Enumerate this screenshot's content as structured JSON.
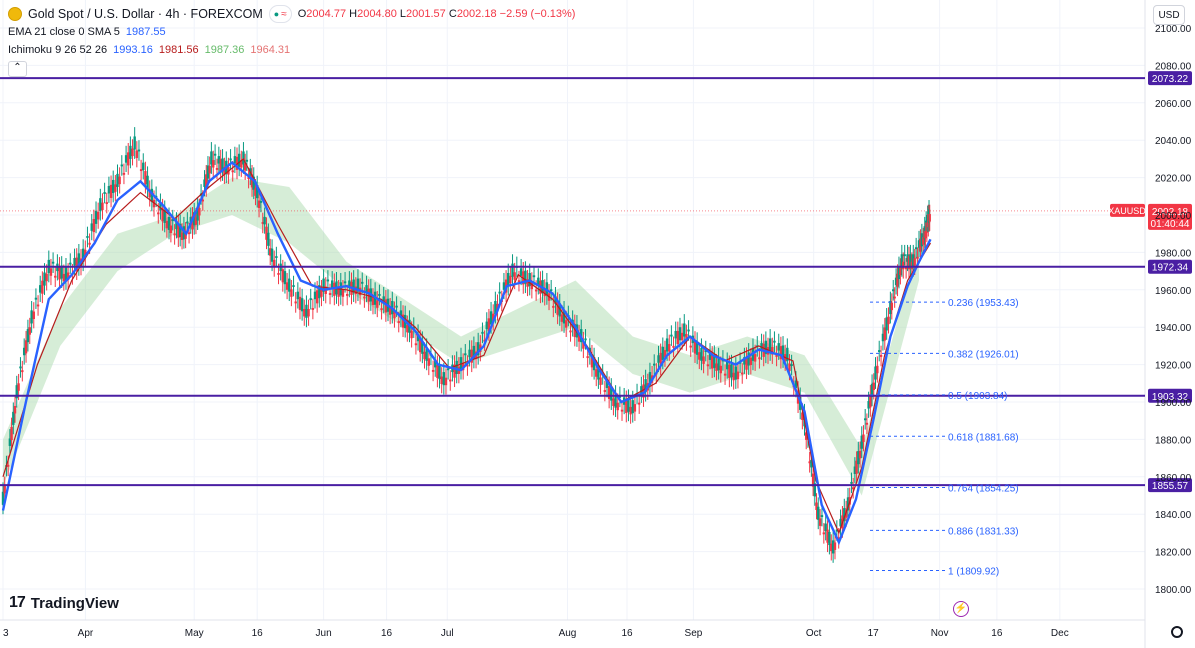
{
  "header": {
    "symbol_title": "Gold Spot / U.S. Dollar · 4h · FOREXCOM",
    "open_label": "O",
    "open": "2004.77",
    "high_label": "H",
    "high": "2004.80",
    "low_label": "L",
    "low": "2001.57",
    "close_label": "C",
    "close": "2002.18",
    "change": "−2.59 (−0.13%)",
    "currency_button": "USD"
  },
  "indicators": {
    "ema_label": "EMA 21 close 0 SMA 5",
    "ema_value": "1987.55",
    "ichimoku_label": "Ichimoku 9 26 52 26",
    "ichimoku_values": [
      "1993.16",
      "1981.56",
      "1987.36",
      "1964.31"
    ]
  },
  "colors": {
    "price_up": "#089981",
    "price_down": "#f23645",
    "ema": "#2962ff",
    "tenkan": "#2962ff",
    "kijun": "#b71c1c",
    "chikou": "#43a047",
    "cloud_bull": "#a5d6a7",
    "cloud_bear": "#f8bbd0",
    "hline": "#4a1fa3",
    "fib": "#2962ff",
    "tag_bg": "#4a1fa3",
    "price_tag_bg": "#f23645"
  },
  "chart_data": {
    "type": "line",
    "title": "Gold Spot / U.S. Dollar · 4h · FOREXCOM",
    "ylim": [
      1795,
      2105
    ],
    "y_ticks": [
      1800,
      1820,
      1840,
      1860,
      1880,
      1900,
      1920,
      1940,
      1960,
      1980,
      2000,
      2020,
      2040,
      2060,
      2080,
      2100
    ],
    "y_tick_labels": [
      "1800.00",
      "1820.00",
      "1840.00",
      "1860.00",
      "1880.00",
      "1900.00",
      "1920.00",
      "1940.00",
      "1960.00",
      "1980.00",
      "2000.00",
      "2020.00",
      "2040.00",
      "2060.00",
      "2080.00",
      "2100.00"
    ],
    "x_ticks": [
      "3",
      "Apr",
      "May",
      "16",
      "Jun",
      "16",
      "Jul",
      "Aug",
      "16",
      "Sep",
      "Oct",
      "17",
      "Nov",
      "16",
      "Dec"
    ],
    "x_tick_pos": [
      0.0,
      0.072,
      0.167,
      0.222,
      0.28,
      0.335,
      0.388,
      0.493,
      0.545,
      0.603,
      0.708,
      0.76,
      0.818,
      0.868,
      0.923
    ],
    "price_series": [
      {
        "d": 0.0,
        "v": 1848
      },
      {
        "d": 0.012,
        "v": 1905
      },
      {
        "d": 0.025,
        "v": 1945
      },
      {
        "d": 0.04,
        "v": 1972
      },
      {
        "d": 0.055,
        "v": 1968
      },
      {
        "d": 0.07,
        "v": 1978
      },
      {
        "d": 0.085,
        "v": 2005
      },
      {
        "d": 0.1,
        "v": 2018
      },
      {
        "d": 0.115,
        "v": 2038
      },
      {
        "d": 0.13,
        "v": 2010
      },
      {
        "d": 0.145,
        "v": 1995
      },
      {
        "d": 0.158,
        "v": 1990
      },
      {
        "d": 0.17,
        "v": 2000
      },
      {
        "d": 0.182,
        "v": 2030
      },
      {
        "d": 0.195,
        "v": 2025
      },
      {
        "d": 0.21,
        "v": 2030
      },
      {
        "d": 0.222,
        "v": 2012
      },
      {
        "d": 0.235,
        "v": 1978
      },
      {
        "d": 0.25,
        "v": 1962
      },
      {
        "d": 0.265,
        "v": 1948
      },
      {
        "d": 0.28,
        "v": 1962
      },
      {
        "d": 0.295,
        "v": 1960
      },
      {
        "d": 0.31,
        "v": 1962
      },
      {
        "d": 0.325,
        "v": 1955
      },
      {
        "d": 0.34,
        "v": 1950
      },
      {
        "d": 0.355,
        "v": 1940
      },
      {
        "d": 0.37,
        "v": 1925
      },
      {
        "d": 0.385,
        "v": 1912
      },
      {
        "d": 0.4,
        "v": 1920
      },
      {
        "d": 0.415,
        "v": 1928
      },
      {
        "d": 0.43,
        "v": 1950
      },
      {
        "d": 0.445,
        "v": 1970
      },
      {
        "d": 0.46,
        "v": 1965
      },
      {
        "d": 0.475,
        "v": 1960
      },
      {
        "d": 0.49,
        "v": 1945
      },
      {
        "d": 0.505,
        "v": 1935
      },
      {
        "d": 0.52,
        "v": 1915
      },
      {
        "d": 0.535,
        "v": 1900
      },
      {
        "d": 0.55,
        "v": 1897
      },
      {
        "d": 0.565,
        "v": 1912
      },
      {
        "d": 0.58,
        "v": 1930
      },
      {
        "d": 0.595,
        "v": 1938
      },
      {
        "d": 0.61,
        "v": 1925
      },
      {
        "d": 0.625,
        "v": 1920
      },
      {
        "d": 0.64,
        "v": 1915
      },
      {
        "d": 0.655,
        "v": 1925
      },
      {
        "d": 0.67,
        "v": 1930
      },
      {
        "d": 0.685,
        "v": 1925
      },
      {
        "d": 0.7,
        "v": 1890
      },
      {
        "d": 0.712,
        "v": 1840
      },
      {
        "d": 0.725,
        "v": 1822
      },
      {
        "d": 0.738,
        "v": 1845
      },
      {
        "d": 0.75,
        "v": 1878
      },
      {
        "d": 0.762,
        "v": 1915
      },
      {
        "d": 0.775,
        "v": 1950
      },
      {
        "d": 0.785,
        "v": 1975
      },
      {
        "d": 0.795,
        "v": 1975
      },
      {
        "d": 0.805,
        "v": 1990
      },
      {
        "d": 0.81,
        "v": 2002
      }
    ],
    "ema_series": [
      {
        "d": 0.0,
        "v": 1842
      },
      {
        "d": 0.02,
        "v": 1900
      },
      {
        "d": 0.04,
        "v": 1955
      },
      {
        "d": 0.06,
        "v": 1968
      },
      {
        "d": 0.08,
        "v": 1985
      },
      {
        "d": 0.1,
        "v": 2008
      },
      {
        "d": 0.12,
        "v": 2018
      },
      {
        "d": 0.14,
        "v": 2005
      },
      {
        "d": 0.16,
        "v": 1990
      },
      {
        "d": 0.18,
        "v": 2018
      },
      {
        "d": 0.2,
        "v": 2028
      },
      {
        "d": 0.22,
        "v": 2018
      },
      {
        "d": 0.24,
        "v": 1990
      },
      {
        "d": 0.26,
        "v": 1965
      },
      {
        "d": 0.28,
        "v": 1960
      },
      {
        "d": 0.3,
        "v": 1962
      },
      {
        "d": 0.32,
        "v": 1958
      },
      {
        "d": 0.34,
        "v": 1950
      },
      {
        "d": 0.36,
        "v": 1938
      },
      {
        "d": 0.38,
        "v": 1920
      },
      {
        "d": 0.4,
        "v": 1917
      },
      {
        "d": 0.42,
        "v": 1930
      },
      {
        "d": 0.44,
        "v": 1962
      },
      {
        "d": 0.46,
        "v": 1965
      },
      {
        "d": 0.48,
        "v": 1958
      },
      {
        "d": 0.5,
        "v": 1940
      },
      {
        "d": 0.52,
        "v": 1918
      },
      {
        "d": 0.54,
        "v": 1900
      },
      {
        "d": 0.56,
        "v": 1905
      },
      {
        "d": 0.58,
        "v": 1925
      },
      {
        "d": 0.6,
        "v": 1935
      },
      {
        "d": 0.62,
        "v": 1925
      },
      {
        "d": 0.64,
        "v": 1920
      },
      {
        "d": 0.66,
        "v": 1928
      },
      {
        "d": 0.68,
        "v": 1925
      },
      {
        "d": 0.7,
        "v": 1895
      },
      {
        "d": 0.715,
        "v": 1845
      },
      {
        "d": 0.73,
        "v": 1825
      },
      {
        "d": 0.745,
        "v": 1848
      },
      {
        "d": 0.76,
        "v": 1890
      },
      {
        "d": 0.775,
        "v": 1935
      },
      {
        "d": 0.79,
        "v": 1962
      },
      {
        "d": 0.8,
        "v": 1975
      },
      {
        "d": 0.81,
        "v": 1987
      }
    ],
    "kijun_series": [
      {
        "d": 0.0,
        "v": 1860
      },
      {
        "d": 0.03,
        "v": 1920
      },
      {
        "d": 0.06,
        "v": 1965
      },
      {
        "d": 0.09,
        "v": 1995
      },
      {
        "d": 0.12,
        "v": 2012
      },
      {
        "d": 0.15,
        "v": 1998
      },
      {
        "d": 0.18,
        "v": 2015
      },
      {
        "d": 0.21,
        "v": 2030
      },
      {
        "d": 0.24,
        "v": 1995
      },
      {
        "d": 0.27,
        "v": 1962
      },
      {
        "d": 0.3,
        "v": 1960
      },
      {
        "d": 0.33,
        "v": 1955
      },
      {
        "d": 0.36,
        "v": 1940
      },
      {
        "d": 0.39,
        "v": 1918
      },
      {
        "d": 0.42,
        "v": 1925
      },
      {
        "d": 0.45,
        "v": 1968
      },
      {
        "d": 0.48,
        "v": 1955
      },
      {
        "d": 0.51,
        "v": 1930
      },
      {
        "d": 0.54,
        "v": 1900
      },
      {
        "d": 0.57,
        "v": 1910
      },
      {
        "d": 0.6,
        "v": 1935
      },
      {
        "d": 0.63,
        "v": 1922
      },
      {
        "d": 0.66,
        "v": 1930
      },
      {
        "d": 0.69,
        "v": 1922
      },
      {
        "d": 0.71,
        "v": 1858
      },
      {
        "d": 0.73,
        "v": 1830
      },
      {
        "d": 0.75,
        "v": 1865
      },
      {
        "d": 0.77,
        "v": 1925
      },
      {
        "d": 0.79,
        "v": 1965
      },
      {
        "d": 0.81,
        "v": 1985
      }
    ],
    "cloud_upper": [
      {
        "d": 0.0,
        "v": 1880
      },
      {
        "d": 0.05,
        "v": 1950
      },
      {
        "d": 0.1,
        "v": 1990
      },
      {
        "d": 0.15,
        "v": 2000
      },
      {
        "d": 0.2,
        "v": 2020
      },
      {
        "d": 0.25,
        "v": 2015
      },
      {
        "d": 0.3,
        "v": 1975
      },
      {
        "d": 0.35,
        "v": 1955
      },
      {
        "d": 0.4,
        "v": 1935
      },
      {
        "d": 0.45,
        "v": 1950
      },
      {
        "d": 0.5,
        "v": 1965
      },
      {
        "d": 0.55,
        "v": 1935
      },
      {
        "d": 0.6,
        "v": 1925
      },
      {
        "d": 0.65,
        "v": 1935
      },
      {
        "d": 0.7,
        "v": 1925
      },
      {
        "d": 0.75,
        "v": 1875
      },
      {
        "d": 0.8,
        "v": 1985
      }
    ],
    "cloud_lower": [
      {
        "d": 0.0,
        "v": 1855
      },
      {
        "d": 0.05,
        "v": 1930
      },
      {
        "d": 0.1,
        "v": 1970
      },
      {
        "d": 0.15,
        "v": 1990
      },
      {
        "d": 0.2,
        "v": 2000
      },
      {
        "d": 0.25,
        "v": 1985
      },
      {
        "d": 0.3,
        "v": 1960
      },
      {
        "d": 0.35,
        "v": 1940
      },
      {
        "d": 0.4,
        "v": 1920
      },
      {
        "d": 0.45,
        "v": 1930
      },
      {
        "d": 0.5,
        "v": 1940
      },
      {
        "d": 0.55,
        "v": 1915
      },
      {
        "d": 0.6,
        "v": 1905
      },
      {
        "d": 0.65,
        "v": 1915
      },
      {
        "d": 0.7,
        "v": 1905
      },
      {
        "d": 0.75,
        "v": 1850
      },
      {
        "d": 0.8,
        "v": 1965
      }
    ],
    "horizontal_levels": [
      {
        "value": 2073.22,
        "label": "2073.22"
      },
      {
        "value": 1972.34,
        "label": "1972.34"
      },
      {
        "value": 1903.32,
        "label": "1903.32"
      },
      {
        "value": 1855.57,
        "label": "1855.57"
      }
    ],
    "fib_levels": [
      {
        "ratio": "0.236",
        "value": 1953.43,
        "label": "0.236 (1953.43)"
      },
      {
        "ratio": "0.382",
        "value": 1926.01,
        "label": "0.382 (1926.01)"
      },
      {
        "ratio": "0.5",
        "value": 1903.84,
        "label": "0.5 (1903.84)"
      },
      {
        "ratio": "0.618",
        "value": 1881.68,
        "label": "0.618 (1881.68)"
      },
      {
        "ratio": "0.764",
        "value": 1854.25,
        "label": "0.764 (1854.25)"
      },
      {
        "ratio": "0.886",
        "value": 1831.33,
        "label": "0.886 (1831.33)"
      },
      {
        "ratio": "1",
        "value": 1809.92,
        "label": "1 (1809.92)"
      }
    ],
    "current_price": {
      "symbol": "XAUUSD",
      "value": 2002.18,
      "label": "2002.18",
      "countdown": "01:40:44"
    }
  },
  "branding": {
    "logo_text": "TradingView"
  }
}
